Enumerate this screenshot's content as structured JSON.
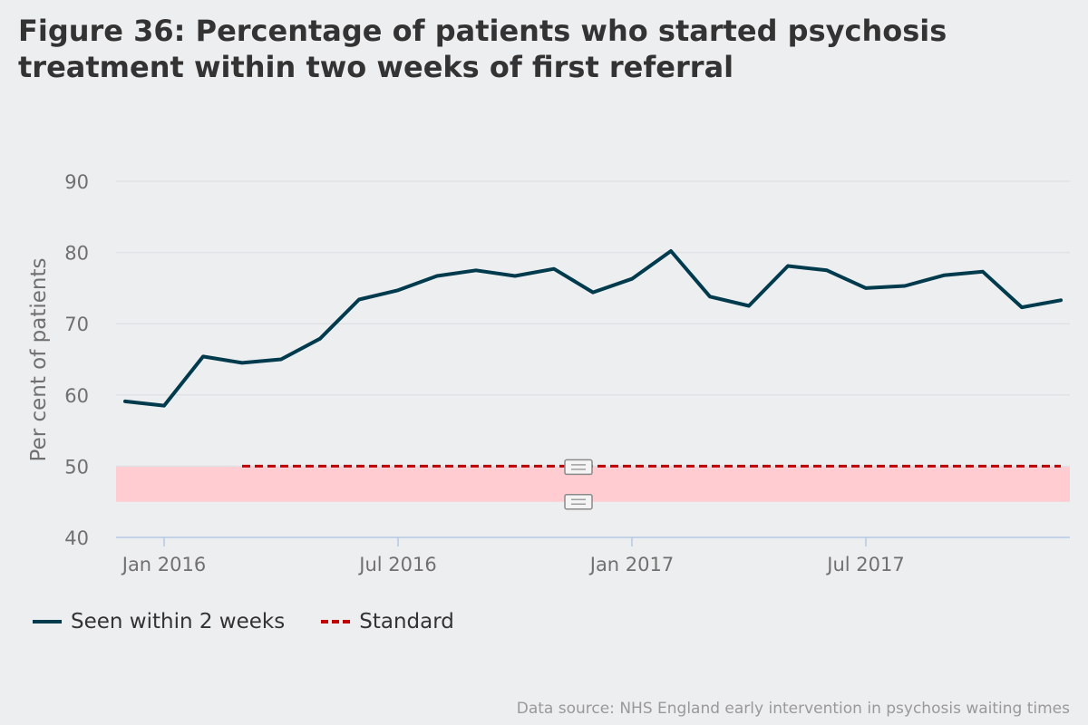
{
  "title": "Figure 36: Percentage of patients who started psychosis treatment within two weeks of first referral",
  "source": "Data source: NHS England early intervention in psychosis waiting times",
  "colors": {
    "series": "#003a4d",
    "standard": "#c00000",
    "band": "#ffccd2",
    "grid": "#e0e2e6",
    "axis_text": "#707070",
    "axis_line": "#b7c8e6"
  },
  "chart_data": {
    "type": "line",
    "title": "Figure 36: Percentage of patients who started psychosis treatment within two weeks of first referral",
    "xlabel": "",
    "ylabel": "Per cent of patients",
    "ylim": [
      40,
      90
    ],
    "yticks": [
      40,
      50,
      60,
      70,
      80,
      90
    ],
    "grid": true,
    "legend_position": "bottom-left",
    "x": [
      "2015-12",
      "2016-01",
      "2016-02",
      "2016-03",
      "2016-04",
      "2016-05",
      "2016-06",
      "2016-07",
      "2016-08",
      "2016-09",
      "2016-10",
      "2016-11",
      "2016-12",
      "2017-01",
      "2017-02",
      "2017-03",
      "2017-04",
      "2017-05",
      "2017-06",
      "2017-07",
      "2017-08",
      "2017-09",
      "2017-10",
      "2017-11",
      "2017-12"
    ],
    "xticks": [
      {
        "label": "Jan 2016",
        "index": 1
      },
      {
        "label": "Jul 2016",
        "index": 7
      },
      {
        "label": "Jan 2017",
        "index": 13
      },
      {
        "label": "Jul 2017",
        "index": 19
      }
    ],
    "series": [
      {
        "name": "Seen within 2 weeks",
        "style": "solid",
        "values": [
          59.1,
          58.5,
          65.4,
          64.5,
          65.0,
          67.9,
          73.4,
          74.7,
          76.7,
          77.5,
          76.7,
          77.7,
          74.4,
          76.3,
          80.2,
          73.8,
          72.5,
          78.1,
          77.5,
          75.0,
          75.3,
          76.8,
          77.3,
          72.3,
          73.3
        ]
      },
      {
        "name": "Standard",
        "style": "dashed",
        "start_index": 3,
        "value": 50
      }
    ],
    "band": {
      "from": 45,
      "to": 50
    }
  }
}
